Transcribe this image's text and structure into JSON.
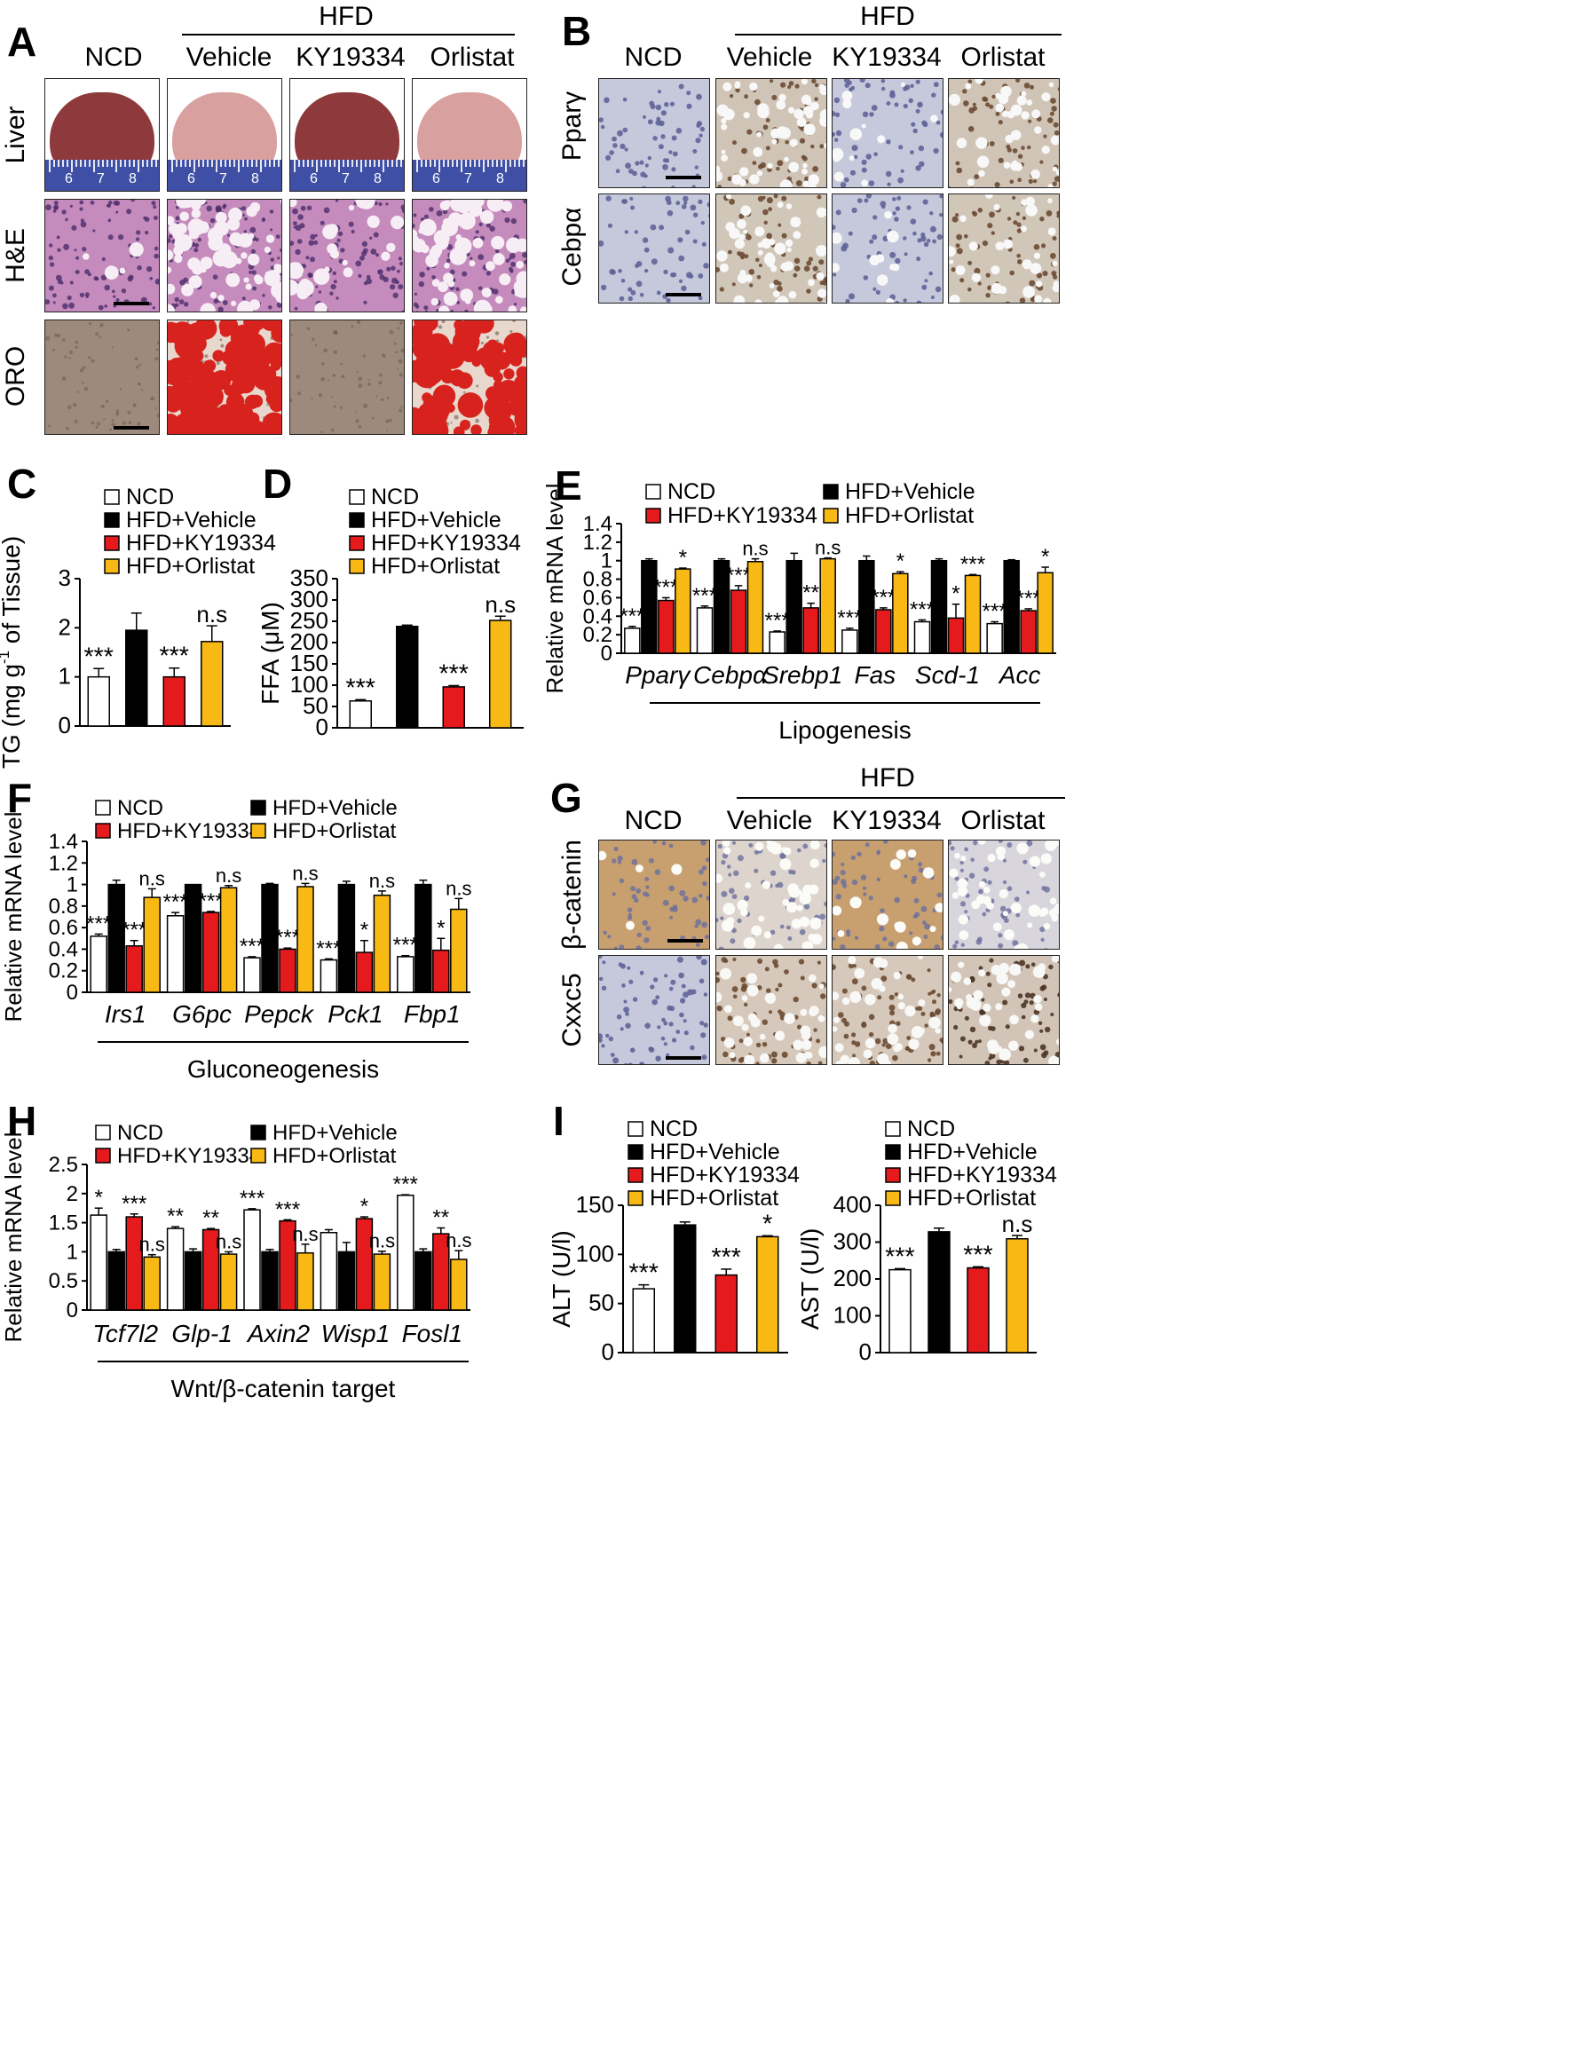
{
  "panels": {
    "A": "A",
    "B": "B",
    "C": "C",
    "D": "D",
    "E": "E",
    "F": "F",
    "G": "G",
    "H": "H",
    "I": "I"
  },
  "group_labels": {
    "hfd": "HFD",
    "ncd": "NCD",
    "vehicle": "Vehicle",
    "ky": "KY19334",
    "orlistat": "Orlistat"
  },
  "panel_a": {
    "rows": [
      "Liver",
      "H&E",
      "ORO"
    ],
    "ruler_numbers": [
      "6",
      "7",
      "8"
    ],
    "colors": {
      "liver_ncd": "#8e3a3d",
      "liver_fatty": "#d9a0a0",
      "he": "#c58bbc",
      "oro": "#9d8a7c",
      "oro_lipid": "#d8221d"
    }
  },
  "panel_b": {
    "rows": [
      "Pparγ",
      "Cebpα"
    ],
    "colors": {
      "hema": "#c6c8dc",
      "dab": "#6b4b33"
    }
  },
  "panel_g": {
    "rows": [
      "β-catenin",
      "Cxxc5"
    ],
    "colors": {
      "bcat": "#c8a070",
      "hema": "#c6c8dc"
    }
  },
  "series_colors": {
    "NCD": "#ffffff",
    "HFD+Vehicle": "#000000",
    "HFD+KY19334": "#e41a1c",
    "HFD+Orlistat": "#f9b915"
  },
  "chart_data": [
    {
      "id": "C",
      "type": "bar",
      "ylabel": "TG (mg g-1 of Tissue)",
      "ylim": [
        0,
        3
      ],
      "yticks": [
        0,
        1,
        2,
        3
      ],
      "legend": [
        "NCD",
        "HFD+Vehicle",
        "HFD+KY19334",
        "HFD+Orlistat"
      ],
      "bars": [
        {
          "name": "NCD",
          "value": 1.0,
          "error": 0.17,
          "sig": "***"
        },
        {
          "name": "HFD+Vehicle",
          "value": 1.95,
          "error": 0.35,
          "sig": ""
        },
        {
          "name": "HFD+KY19334",
          "value": 1.0,
          "error": 0.18,
          "sig": "***"
        },
        {
          "name": "HFD+Orlistat",
          "value": 1.72,
          "error": 0.32,
          "sig": "n.s"
        }
      ]
    },
    {
      "id": "D",
      "type": "bar",
      "ylabel": "FFA (μM)",
      "ylim": [
        0,
        350
      ],
      "yticks": [
        0,
        50,
        100,
        150,
        200,
        250,
        300,
        350
      ],
      "legend": [
        "NCD",
        "HFD+Vehicle",
        "HFD+KY19334",
        "HFD+Orlistat"
      ],
      "bars": [
        {
          "name": "NCD",
          "value": 63,
          "error": 3,
          "sig": "***"
        },
        {
          "name": "HFD+Vehicle",
          "value": 238,
          "error": 3,
          "sig": ""
        },
        {
          "name": "HFD+KY19334",
          "value": 96,
          "error": 3,
          "sig": "***"
        },
        {
          "name": "HFD+Orlistat",
          "value": 252,
          "error": 10,
          "sig": "n.s"
        }
      ]
    },
    {
      "id": "E",
      "type": "bar",
      "ylabel": "Relative mRNA level",
      "ylim": [
        0,
        1.4
      ],
      "yticks": [
        "0",
        "0.2",
        "0.4",
        "0.6",
        "0.8",
        "1",
        "1.2",
        "1.4"
      ],
      "categories": [
        "Pparγ",
        "Cebpα",
        "Srebp1",
        "Fas",
        "Scd-1",
        "Acc"
      ],
      "xgroup_label": "Lipogenesis",
      "legend": [
        "NCD",
        "HFD+KY19334",
        "HFD+Vehicle",
        "HFD+Orlistat"
      ],
      "series": [
        {
          "name": "NCD",
          "values": [
            0.27,
            0.49,
            0.23,
            0.25,
            0.34,
            0.32
          ],
          "errors": [
            0.02,
            0.02,
            0.01,
            0.02,
            0.02,
            0.02
          ],
          "sig": [
            "***",
            "***",
            "***",
            "***",
            "***",
            "***"
          ]
        },
        {
          "name": "HFD+Vehicle",
          "values": [
            1.0,
            1.0,
            1.0,
            1.0,
            1.0,
            1.0
          ],
          "errors": [
            0.02,
            0.02,
            0.08,
            0.05,
            0.02,
            0.01
          ],
          "sig": [
            "",
            "",
            "",
            "",
            "",
            ""
          ]
        },
        {
          "name": "HFD+KY19334",
          "values": [
            0.57,
            0.68,
            0.49,
            0.47,
            0.38,
            0.46
          ],
          "errors": [
            0.03,
            0.05,
            0.05,
            0.02,
            0.15,
            0.02
          ],
          "sig": [
            "***",
            "***",
            "**",
            "***",
            "*",
            "***"
          ]
        },
        {
          "name": "HFD+Orlistat",
          "values": [
            0.91,
            0.99,
            1.02,
            0.86,
            0.84,
            0.87
          ],
          "errors": [
            0.01,
            0.03,
            0.01,
            0.02,
            0.01,
            0.06
          ],
          "sig": [
            "*",
            "n.s",
            "n.s",
            "*",
            "***",
            "*"
          ]
        }
      ]
    },
    {
      "id": "F",
      "type": "bar",
      "ylabel": "Relative mRNA level",
      "ylim": [
        0,
        1.4
      ],
      "yticks": [
        "0",
        "0.2",
        "0.4",
        "0.6",
        "0.8",
        "1",
        "1.2",
        "1.4"
      ],
      "categories": [
        "Irs1",
        "G6pc",
        "Pepck",
        "Pck1",
        "Fbp1"
      ],
      "xgroup_label": "Gluconeogenesis",
      "legend": [
        "NCD",
        "HFD+KY19334",
        "HFD+Vehicle",
        "HFD+Orlistat"
      ],
      "series": [
        {
          "name": "NCD",
          "values": [
            0.52,
            0.71,
            0.32,
            0.3,
            0.33
          ],
          "errors": [
            0.02,
            0.03,
            0.01,
            0.01,
            0.01
          ],
          "sig": [
            "***",
            "***",
            "***",
            "***",
            "***"
          ]
        },
        {
          "name": "HFD+Vehicle",
          "values": [
            1.0,
            1.0,
            1.0,
            1.0,
            1.0
          ],
          "errors": [
            0.04,
            0.0,
            0.01,
            0.03,
            0.04
          ],
          "sig": [
            "",
            "",
            "",
            "",
            ""
          ]
        },
        {
          "name": "HFD+KY19334",
          "values": [
            0.43,
            0.74,
            0.4,
            0.37,
            0.39
          ],
          "errors": [
            0.05,
            0.01,
            0.01,
            0.11,
            0.11
          ],
          "sig": [
            "***",
            "***",
            "***",
            "*",
            "*"
          ]
        },
        {
          "name": "HFD+Orlistat",
          "values": [
            0.88,
            0.97,
            0.98,
            0.9,
            0.77
          ],
          "errors": [
            0.08,
            0.02,
            0.03,
            0.04,
            0.1
          ],
          "sig": [
            "n.s",
            "n.s",
            "n.s",
            "n.s",
            "n.s"
          ]
        }
      ]
    },
    {
      "id": "H",
      "type": "bar",
      "ylabel": "Relative mRNA level",
      "ylim": [
        0,
        2.5
      ],
      "yticks": [
        "0",
        "0.5",
        "1",
        "1.5",
        "2",
        "2.5"
      ],
      "categories": [
        "Tcf7l2",
        "Glp-1",
        "Axin2",
        "Wisp1",
        "Fosl1"
      ],
      "xgroup_label": "Wnt/β-catenin target",
      "legend": [
        "NCD",
        "HFD+KY19334",
        "HFD+Vehicle",
        "HFD+Orlistat"
      ],
      "series": [
        {
          "name": "NCD",
          "values": [
            1.63,
            1.4,
            1.72,
            1.33,
            1.97
          ],
          "errors": [
            0.12,
            0.03,
            0.02,
            0.05,
            0.01
          ],
          "sig": [
            "*",
            "**",
            "***",
            "",
            "***"
          ]
        },
        {
          "name": "HFD+Vehicle",
          "values": [
            1.0,
            1.0,
            1.0,
            1.0,
            1.0
          ],
          "errors": [
            0.04,
            0.05,
            0.04,
            0.16,
            0.05
          ],
          "sig": [
            "",
            "",
            "",
            "",
            ""
          ]
        },
        {
          "name": "HFD+KY19334",
          "values": [
            1.6,
            1.38,
            1.53,
            1.57,
            1.31
          ],
          "errors": [
            0.05,
            0.02,
            0.02,
            0.03,
            0.1
          ],
          "sig": [
            "***",
            "**",
            "***",
            "*",
            "**"
          ]
        },
        {
          "name": "HFD+Orlistat",
          "values": [
            0.91,
            0.96,
            0.98,
            0.96,
            0.87
          ],
          "errors": [
            0.04,
            0.04,
            0.15,
            0.05,
            0.15
          ],
          "sig": [
            "n.s",
            "n.s",
            "n.s",
            "n.s",
            "n.s"
          ]
        }
      ]
    },
    {
      "id": "I1",
      "type": "bar",
      "ylabel": "ALT (U/l)",
      "ylim": [
        0,
        150
      ],
      "yticks": [
        0,
        50,
        100,
        150
      ],
      "legend": [
        "NCD",
        "HFD+Vehicle",
        "HFD+KY19334",
        "HFD+Orlistat"
      ],
      "bars": [
        {
          "name": "NCD",
          "value": 65,
          "error": 4,
          "sig": "***"
        },
        {
          "name": "HFD+Vehicle",
          "value": 130,
          "error": 3,
          "sig": ""
        },
        {
          "name": "HFD+KY19334",
          "value": 79,
          "error": 6,
          "sig": "***"
        },
        {
          "name": "HFD+Orlistat",
          "value": 118,
          "error": 1,
          "sig": "*"
        }
      ]
    },
    {
      "id": "I2",
      "type": "bar",
      "ylabel": "AST (U/l)",
      "ylim": [
        0,
        400
      ],
      "yticks": [
        0,
        100,
        200,
        300,
        400
      ],
      "legend": [
        "NCD",
        "HFD+Vehicle",
        "HFD+KY19334",
        "HFD+Orlistat"
      ],
      "bars": [
        {
          "name": "NCD",
          "value": 225,
          "error": 3,
          "sig": "***"
        },
        {
          "name": "HFD+Vehicle",
          "value": 328,
          "error": 10,
          "sig": ""
        },
        {
          "name": "HFD+KY19334",
          "value": 230,
          "error": 3,
          "sig": "***"
        },
        {
          "name": "HFD+Orlistat",
          "value": 309,
          "error": 9,
          "sig": "n.s"
        }
      ]
    }
  ]
}
